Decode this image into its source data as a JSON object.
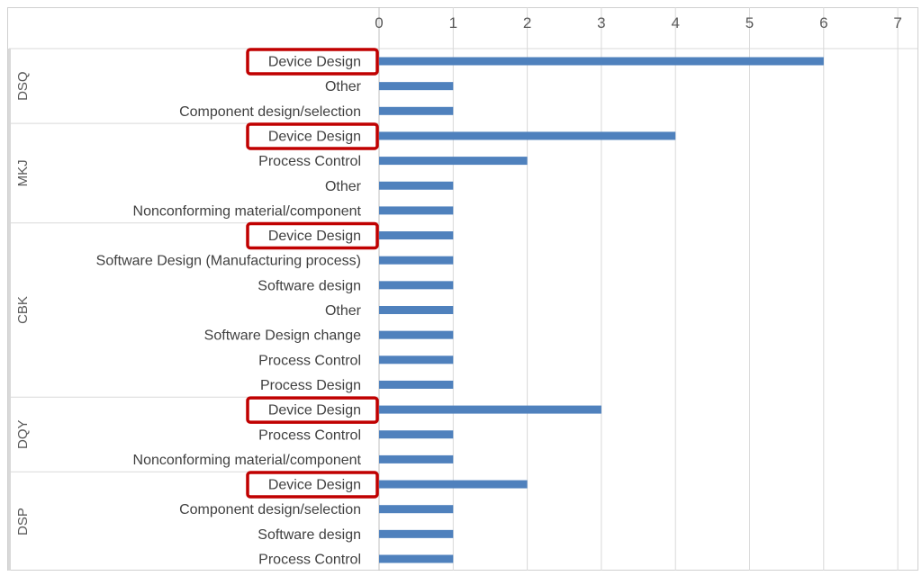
{
  "chart_data": {
    "type": "bar",
    "orientation": "horizontal",
    "xlim": [
      0,
      7
    ],
    "x_ticks": [
      "0",
      "1",
      "2",
      "3",
      "4",
      "5",
      "6",
      "7"
    ],
    "x_axis_position": "top",
    "grid": true,
    "legend": "none",
    "bar_color": "#4F81BD",
    "highlight_color": "#C00000",
    "groups": [
      {
        "name": "DSQ",
        "items": [
          {
            "label": "Device Design",
            "value": 6,
            "highlighted": true
          },
          {
            "label": "Other",
            "value": 1
          },
          {
            "label": "Component design/selection",
            "value": 1
          }
        ]
      },
      {
        "name": "MKJ",
        "items": [
          {
            "label": "Device Design",
            "value": 4,
            "highlighted": true
          },
          {
            "label": "Process Control",
            "value": 2
          },
          {
            "label": "Other",
            "value": 1
          },
          {
            "label": "Nonconforming material/component",
            "value": 1
          }
        ]
      },
      {
        "name": "CBK",
        "items": [
          {
            "label": "Device Design",
            "value": 1,
            "highlighted": true
          },
          {
            "label": "Software Design (Manufacturing process)",
            "value": 1
          },
          {
            "label": "Software design",
            "value": 1
          },
          {
            "label": "Other",
            "value": 1
          },
          {
            "label": "Software Design change",
            "value": 1
          },
          {
            "label": "Process Control",
            "value": 1
          },
          {
            "label": "Process Design",
            "value": 1
          }
        ]
      },
      {
        "name": "DQY",
        "items": [
          {
            "label": "Device Design",
            "value": 3,
            "highlighted": true
          },
          {
            "label": "Process Control",
            "value": 1
          },
          {
            "label": "Nonconforming material/component",
            "value": 1
          }
        ]
      },
      {
        "name": "DSP",
        "items": [
          {
            "label": "Device Design",
            "value": 2,
            "highlighted": true
          },
          {
            "label": "Component design/selection",
            "value": 1
          },
          {
            "label": "Software design",
            "value": 1
          },
          {
            "label": "Process Control",
            "value": 1
          }
        ]
      }
    ]
  }
}
